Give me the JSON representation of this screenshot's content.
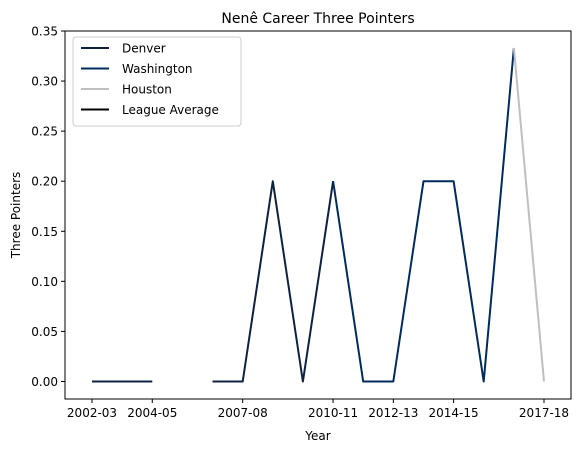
{
  "chart_data": {
    "type": "line",
    "title": "Nenê Career Three Pointers",
    "xlabel": "Year",
    "ylabel": "Three Pointers",
    "x": [
      "2002-03",
      "2003-04",
      "2004-05",
      "2005-06",
      "2006-07",
      "2007-08",
      "2008-09",
      "2009-10",
      "2010-11",
      "2011-12",
      "2012-13",
      "2013-14",
      "2014-15",
      "2015-16",
      "2016-17",
      "2017-18"
    ],
    "xticks": [
      "2002-03",
      "2004-05",
      "2007-08",
      "2010-11",
      "2012-13",
      "2014-15",
      "2017-18"
    ],
    "ylim": [
      -0.0175,
      0.35
    ],
    "yticks": [
      0.0,
      0.05,
      0.1,
      0.15,
      0.2,
      0.25,
      0.3,
      0.35
    ],
    "ytick_labels": [
      "0.00",
      "0.05",
      "0.10",
      "0.15",
      "0.20",
      "0.25",
      "0.30",
      "0.35"
    ],
    "legend_position": "top-left",
    "grid": false,
    "series": [
      {
        "name": "Denver",
        "color": "#0e2240",
        "points": [
          {
            "x": "2002-03",
            "y": 0.0
          },
          {
            "x": "2003-04",
            "y": 0.0
          },
          {
            "x": "2004-05",
            "y": 0.0
          },
          {
            "x": "2006-07",
            "y": 0.0
          },
          {
            "x": "2007-08",
            "y": 0.0
          },
          {
            "x": "2008-09",
            "y": 0.2
          },
          {
            "x": "2009-10",
            "y": 0.0
          },
          {
            "x": "2010-11",
            "y": 0.2
          }
        ]
      },
      {
        "name": "Washington",
        "color": "#002b5c",
        "points": [
          {
            "x": "2010-11",
            "y": 0.2
          },
          {
            "x": "2011-12",
            "y": 0.0
          },
          {
            "x": "2012-13",
            "y": 0.0
          },
          {
            "x": "2013-14",
            "y": 0.2
          },
          {
            "x": "2014-15",
            "y": 0.2
          },
          {
            "x": "2015-16",
            "y": 0.0
          },
          {
            "x": "2016-17",
            "y": 0.333
          }
        ]
      },
      {
        "name": "Houston",
        "color": "#bfbfbf",
        "points": [
          {
            "x": "2016-17",
            "y": 0.333
          },
          {
            "x": "2017-18",
            "y": 0.0
          }
        ]
      },
      {
        "name": "League Average",
        "color": "#000000",
        "points": []
      }
    ]
  }
}
